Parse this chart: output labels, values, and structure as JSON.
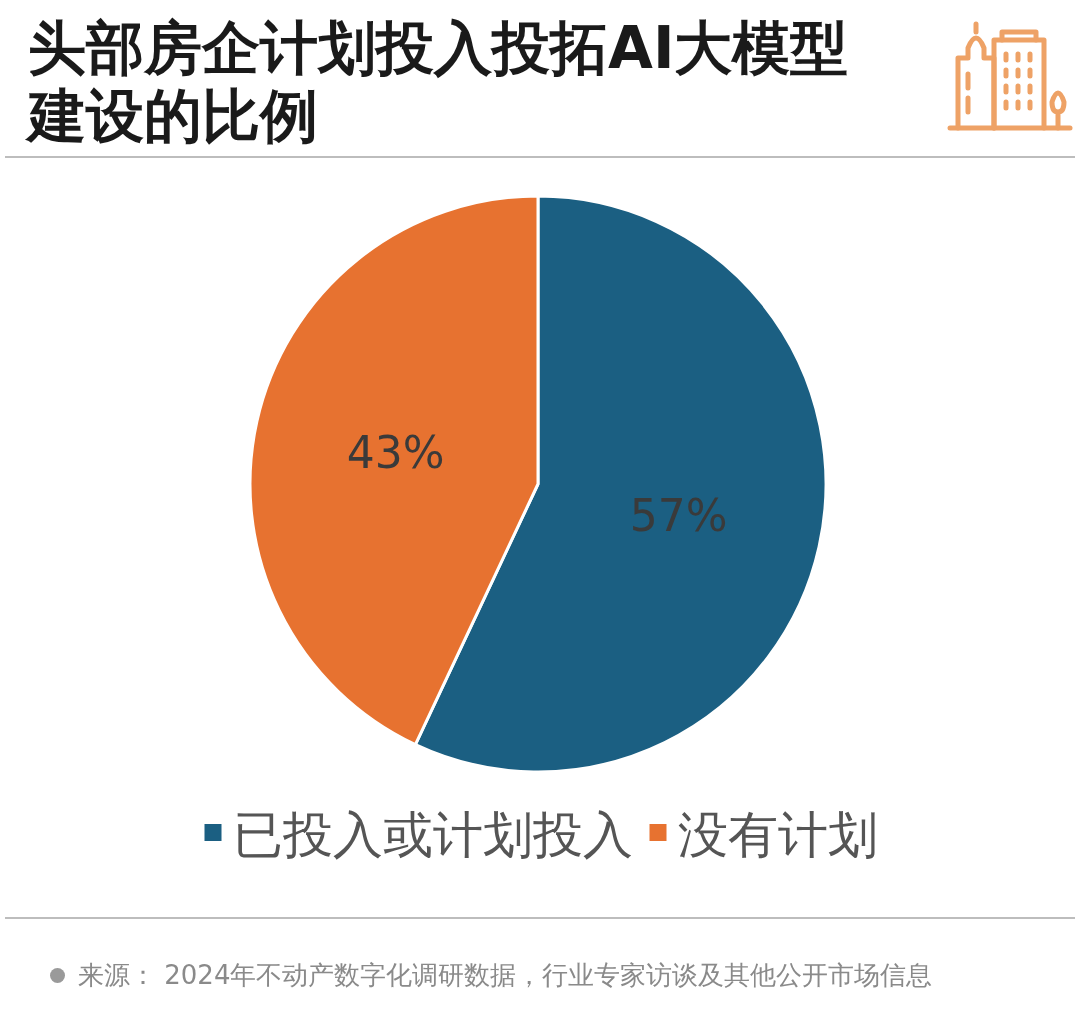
{
  "chart_data": {
    "type": "pie",
    "title": "头部房企计划投入投拓AI大模型建设的比例",
    "categories": [
      "已投入或计划投入",
      "没有计划"
    ],
    "values": [
      57,
      43
    ],
    "colors": [
      "#1b5f82",
      "#e77230"
    ],
    "value_labels": [
      "57%",
      "43%"
    ],
    "legend": "bottom",
    "annotations": [
      "来源： 2024年不动产数字化调研数据，行业专家访谈及其他公开市场信息"
    ]
  }
}
